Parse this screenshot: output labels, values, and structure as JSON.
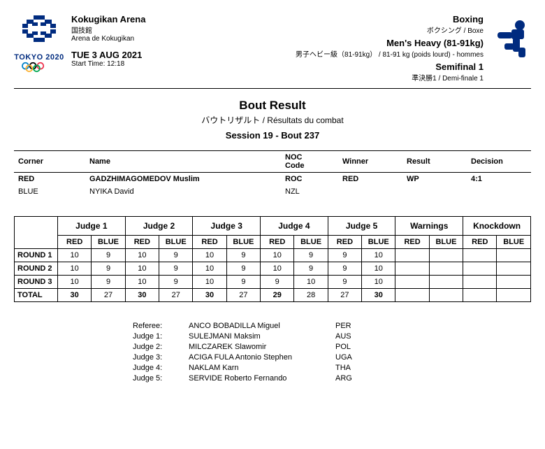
{
  "header": {
    "logo_label": "TOKYO 2020",
    "venue_name": "Kokugikan Arena",
    "venue_jp": "国技館",
    "venue_loc": "Arena de Kokugikan",
    "date": "TUE 3 AUG 2021",
    "start_time_label": "Start Time: 12:18",
    "sport": "Boxing",
    "sport_sub": "ボクシング / Boxe",
    "category": "Men's Heavy (81-91kg)",
    "category_sub": "男子ヘビー級（81-91kg） / 81-91 kg (poids lourd) - hommes",
    "phase": "Semifinal 1",
    "phase_sub": "準決勝1 / Demi-finale 1"
  },
  "title": {
    "main": "Bout Result",
    "sub": "バウトリザルト / Résultats du combat",
    "session": "Session 19 - Bout 237"
  },
  "competitors": {
    "headers": {
      "corner": "Corner",
      "name": "Name",
      "noc": "NOC Code",
      "winner": "Winner",
      "result": "Result",
      "decision": "Decision"
    },
    "rows": [
      {
        "corner": "RED",
        "name": "GADZHIMAGOMEDOV Muslim",
        "noc": "ROC",
        "winner": "RED",
        "result": "WP",
        "decision": "4:1",
        "bold": true
      },
      {
        "corner": "BLUE",
        "name": "NYIKA David",
        "noc": "NZL",
        "winner": "",
        "result": "",
        "decision": "",
        "bold": false
      }
    ]
  },
  "scores": {
    "sections": [
      "Judge 1",
      "Judge 2",
      "Judge 3",
      "Judge 4",
      "Judge 5",
      "Warnings",
      "Knockdown"
    ],
    "subheaders": [
      "RED",
      "BLUE"
    ],
    "rows": [
      {
        "label": "ROUND 1",
        "cells": [
          "10",
          "9",
          "10",
          "9",
          "10",
          "9",
          "10",
          "9",
          "9",
          "10",
          "",
          "",
          "",
          ""
        ]
      },
      {
        "label": "ROUND 2",
        "cells": [
          "10",
          "9",
          "10",
          "9",
          "10",
          "9",
          "10",
          "9",
          "9",
          "10",
          "",
          "",
          "",
          ""
        ]
      },
      {
        "label": "ROUND 3",
        "cells": [
          "10",
          "9",
          "10",
          "9",
          "10",
          "9",
          "9",
          "10",
          "9",
          "10",
          "",
          "",
          "",
          ""
        ]
      }
    ],
    "total": {
      "label": "TOTAL",
      "cells": [
        "30",
        "27",
        "30",
        "27",
        "30",
        "27",
        "29",
        "28",
        "27",
        "30",
        "",
        "",
        "",
        ""
      ]
    },
    "total_bold_idx": [
      0,
      2,
      4,
      6,
      9
    ]
  },
  "officials": [
    {
      "role": "Referee:",
      "name": "ANCO BOBADILLA Miguel",
      "noc": "PER"
    },
    {
      "role": "Judge 1:",
      "name": "SULEJMANI Maksim",
      "noc": "AUS"
    },
    {
      "role": "Judge 2:",
      "name": "MILCZAREK Slawomir",
      "noc": "POL"
    },
    {
      "role": "Judge 3:",
      "name": "ACIGA FULA Antonio Stephen",
      "noc": "UGA"
    },
    {
      "role": "Judge 4:",
      "name": "NAKLAM Karn",
      "noc": "THA"
    },
    {
      "role": "Judge 5:",
      "name": "SERVIDE Roberto Fernando",
      "noc": "ARG"
    }
  ],
  "colors": {
    "olympic_blue": "#0081c8",
    "olympic_yellow": "#fcb131",
    "olympic_black": "#000000",
    "olympic_green": "#00a651",
    "olympic_red": "#ee334e",
    "brand": "#002b7f"
  }
}
